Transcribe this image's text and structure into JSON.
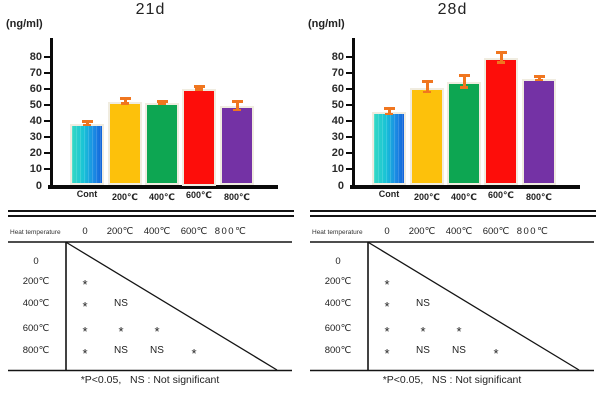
{
  "panels": [
    {
      "title": "21d",
      "unit_label": "(ng/ml)",
      "sig_table": {
        "header_label": "Heat temperature",
        "columns": [
          "0",
          "200℃",
          "400℃",
          "600℃",
          "800℃"
        ],
        "rows": [
          {
            "label": "0",
            "cells": []
          },
          {
            "label": "200℃",
            "cells": [
              "*"
            ]
          },
          {
            "label": "400℃",
            "cells": [
              "*",
              "NS"
            ]
          },
          {
            "label": "600℃",
            "cells": [
              "*",
              "*",
              "*"
            ]
          },
          {
            "label": "800℃",
            "cells": [
              "*",
              "NS",
              "NS",
              "*"
            ]
          }
        ],
        "footnote": "*P<0.05,   NS : Not significant"
      }
    },
    {
      "title": "28d",
      "unit_label": "(ng/ml)",
      "sig_table": {
        "header_label": "Heat temperature",
        "columns": [
          "0",
          "200℃",
          "400℃",
          "600℃",
          "800℃"
        ],
        "rows": [
          {
            "label": "0",
            "cells": []
          },
          {
            "label": "200℃",
            "cells": [
              "*"
            ]
          },
          {
            "label": "400℃",
            "cells": [
              "*",
              "NS"
            ]
          },
          {
            "label": "600℃",
            "cells": [
              "*",
              "*",
              "*"
            ]
          },
          {
            "label": "800℃",
            "cells": [
              "*",
              "NS",
              "NS",
              "*"
            ]
          }
        ],
        "footnote": "*P<0.05,   NS : Not significant"
      }
    }
  ],
  "chart_data": [
    {
      "type": "bar",
      "title": "21d",
      "ylabel": "(ng/ml)",
      "xlabel": "",
      "categories": [
        "Cont",
        "200℃",
        "400℃",
        "600℃",
        "800℃"
      ],
      "values": [
        38,
        52,
        51,
        60,
        49
      ],
      "errors": [
        2,
        2.5,
        1.5,
        2,
        3.5
      ],
      "ylim": [
        0,
        80
      ],
      "ytick_step": 10,
      "grid": false,
      "legend": null,
      "error_color": "#f0761f",
      "bar_colors": [
        {
          "type": "gradient",
          "stops": [
            "#35d9c3",
            "#18c2d7",
            "#1b8ce4",
            "#1463d9"
          ]
        },
        {
          "type": "solid",
          "color": "#fdc10b"
        },
        {
          "type": "solid",
          "color": "#0da652"
        },
        {
          "type": "solid",
          "color": "#fd0d0a"
        },
        {
          "type": "solid",
          "color": "#7432a5"
        }
      ]
    },
    {
      "type": "bar",
      "title": "28d",
      "ylabel": "(ng/ml)",
      "xlabel": "",
      "categories": [
        "Cont",
        "200℃",
        "400℃",
        "600℃",
        "800℃"
      ],
      "values": [
        45.5,
        60.5,
        64,
        79,
        66
      ],
      "errors": [
        2.5,
        4,
        4.5,
        4,
        2
      ],
      "ylim": [
        0,
        80
      ],
      "ytick_step": 10,
      "grid": false,
      "legend": null,
      "error_color": "#f0761f",
      "bar_colors": [
        {
          "type": "gradient",
          "stops": [
            "#35d9c3",
            "#18c2d7",
            "#1b8ce4",
            "#1463d9"
          ]
        },
        {
          "type": "solid",
          "color": "#fdc10b"
        },
        {
          "type": "solid",
          "color": "#0da652"
        },
        {
          "type": "solid",
          "color": "#fd0d0a"
        },
        {
          "type": "solid",
          "color": "#7432a5"
        }
      ]
    }
  ]
}
